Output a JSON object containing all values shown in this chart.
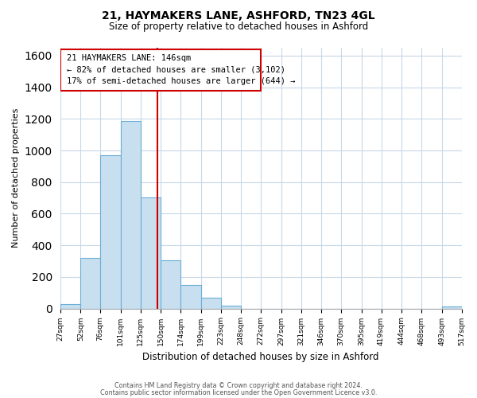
{
  "title": "21, HAYMAKERS LANE, ASHFORD, TN23 4GL",
  "subtitle": "Size of property relative to detached houses in Ashford",
  "xlabel": "Distribution of detached houses by size in Ashford",
  "ylabel": "Number of detached properties",
  "footnote1": "Contains HM Land Registry data © Crown copyright and database right 2024.",
  "footnote2": "Contains public sector information licensed under the Open Government Licence v3.0.",
  "bar_edges": [
    27,
    52,
    76,
    101,
    125,
    150,
    174,
    199,
    223,
    248,
    272,
    297,
    321,
    346,
    370,
    395,
    419,
    444,
    468,
    493,
    517
  ],
  "bar_heights": [
    30,
    320,
    970,
    1185,
    705,
    305,
    150,
    70,
    20,
    0,
    0,
    0,
    0,
    0,
    0,
    0,
    0,
    0,
    0,
    15
  ],
  "bar_color": "#c8dff0",
  "bar_edgecolor": "#6baed6",
  "vline_x": 146,
  "vline_color": "#cc0000",
  "annotation_title": "21 HAYMAKERS LANE: 146sqm",
  "annotation_line1": "← 82% of detached houses are smaller (3,102)",
  "annotation_line2": "17% of semi-detached houses are larger (644) →",
  "box_edgecolor": "#cc0000",
  "box_facecolor": "#ffffff",
  "ylim": [
    0,
    1650
  ],
  "yticks": [
    0,
    200,
    400,
    600,
    800,
    1000,
    1200,
    1400,
    1600
  ],
  "bg_color": "#ffffff",
  "grid_color": "#c8d8e8",
  "title_fontsize": 10,
  "subtitle_fontsize": 8.5
}
